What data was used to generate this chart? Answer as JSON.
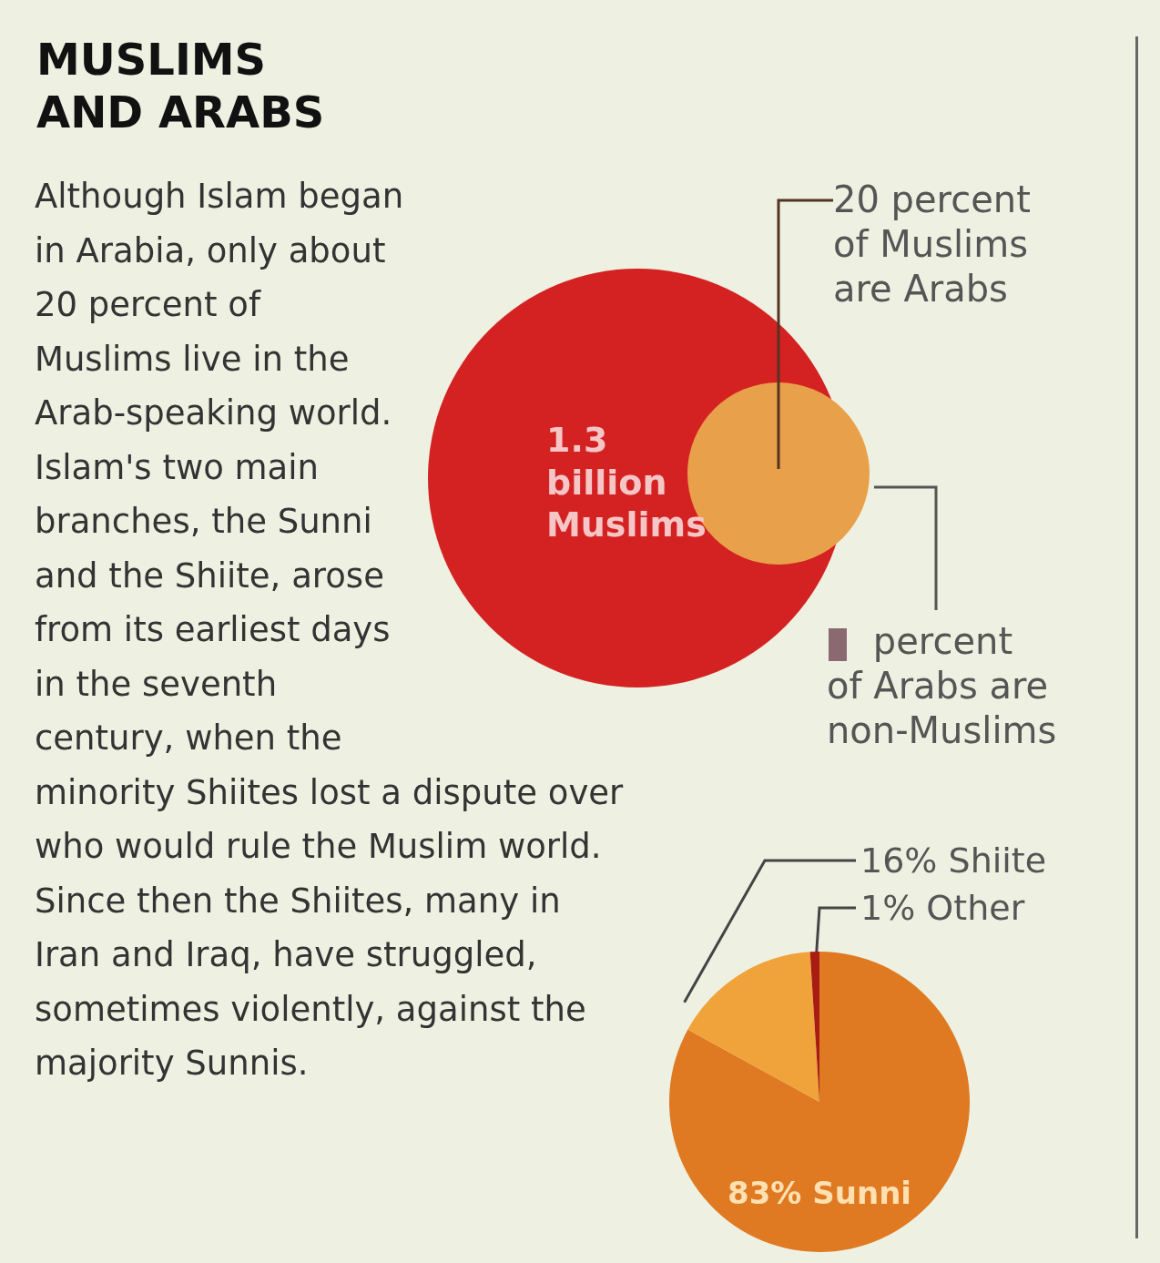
{
  "chart_data": [
    {
      "type": "other",
      "title": "MUSLIMS AND ARABS",
      "subtitle": "Although Islam began in Arabia, only about 20 percent of Muslims live in the Arab-speaking world. Islam's two main branches, the Sunni and the Shiite, arose from its earliest days in the seventh century, when the minority Shiites lost a dispute over who would rule the Muslim world. Since then the Shiites, many in Iran and Iraq, have struggled, sometimes violently, against the majority Sunnis.",
      "annotations": [
        "1.3 billion Muslims",
        "20 percent of Muslims are Arabs",
        "percent of Arabs are non-Muslims"
      ]
    },
    {
      "type": "pie",
      "categories": [
        "Sunni",
        "Shiite",
        "Other"
      ],
      "values": [
        83,
        16,
        1
      ],
      "colors": [
        "#e07a22",
        "#f0a33a",
        "#a81c14"
      ],
      "value_labels": [
        "83%",
        "16%",
        "1%"
      ]
    }
  ]
}
